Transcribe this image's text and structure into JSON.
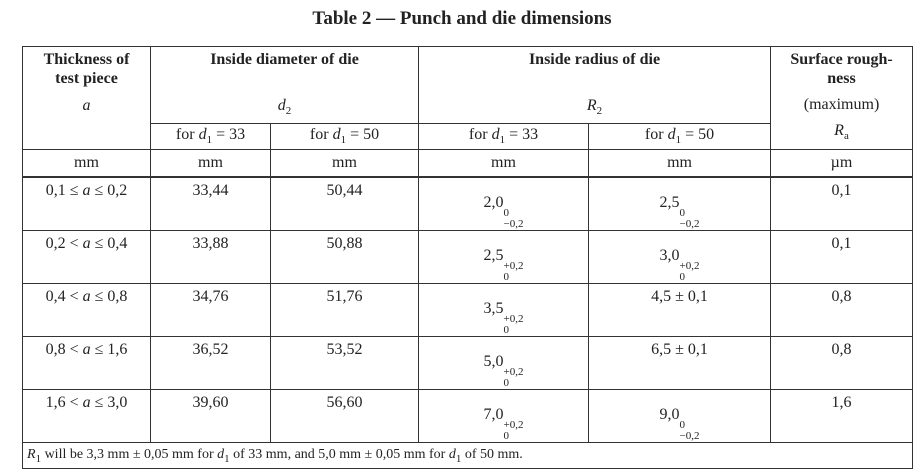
{
  "title": "Table 2 — Punch and die dimensions",
  "header": {
    "thickness": {
      "line1": "Thickness of",
      "line2": "test piece",
      "symbol": "a"
    },
    "diameter": {
      "title": "Inside diameter of die",
      "symbol": "d",
      "symbol_sub": "2"
    },
    "radius": {
      "title": "Inside radius of die",
      "symbol": "R",
      "symbol_sub": "2"
    },
    "roughness": {
      "line1": "Surface rough-",
      "line2": "ness",
      "note": "(maximum)",
      "symbol": "R",
      "symbol_sub": "a"
    },
    "subheads": [
      {
        "pre": "for ",
        "var": "d",
        "sub": "1",
        "post": " = 33"
      },
      {
        "pre": "for ",
        "var": "d",
        "sub": "1",
        "post": " = 50"
      },
      {
        "pre": "for ",
        "var": "d",
        "sub": "1",
        "post": " = 33"
      },
      {
        "pre": "for ",
        "var": "d",
        "sub": "1",
        "post": " = 50"
      }
    ],
    "units": [
      "mm",
      "mm",
      "mm",
      "mm",
      "mm",
      "µm"
    ]
  },
  "rows": [
    {
      "range": {
        "low": "0,1 ≤ ",
        "var": "a",
        "high": " ≤ 0,2"
      },
      "d33": "33,44",
      "d50": "50,44",
      "r33": {
        "base": "2,0",
        "sup": "0",
        "sub": "−0,2"
      },
      "r50": {
        "base": "2,5",
        "sup": "0",
        "sub": "−0,2"
      },
      "ra": "0,1"
    },
    {
      "range": {
        "low": "0,2 < ",
        "var": "a",
        "high": " ≤ 0,4"
      },
      "d33": "33,88",
      "d50": "50,88",
      "r33": {
        "base": "2,5",
        "sup": "+0,2",
        "sub": "0"
      },
      "r50": {
        "base": "3,0",
        "sup": "+0,2",
        "sub": "0"
      },
      "ra": "0,1"
    },
    {
      "range": {
        "low": "0,4 < ",
        "var": "a",
        "high": " ≤ 0,8"
      },
      "d33": "34,76",
      "d50": "51,76",
      "r33": {
        "base": "3,5",
        "sup": "+0,2",
        "sub": "0"
      },
      "r50": "4,5 ± 0,1",
      "ra": "0,8"
    },
    {
      "range": {
        "low": "0,8 < ",
        "var": "a",
        "high": " ≤ 1,6"
      },
      "d33": "36,52",
      "d50": "53,52",
      "r33": {
        "base": "5,0",
        "sup": "+0,2",
        "sub": "0"
      },
      "r50": "6,5 ± 0,1",
      "ra": "0,8"
    },
    {
      "range": {
        "low": "1,6 < ",
        "var": "a",
        "high": " ≤ 3,0"
      },
      "d33": "39,60",
      "d50": "56,60",
      "r33": {
        "base": "7,0",
        "sup": "+0,2",
        "sub": "0"
      },
      "r50": {
        "base": "9,0",
        "sup": "0",
        "sub": "−0,2"
      },
      "ra": "1,6"
    }
  ],
  "footnote": [
    "R",
    "1",
    " will be 3,3 mm ± 0,05 mm for ",
    "d",
    "1",
    " of 33 mm, and 5,0 mm ± 0,05 mm for ",
    "d",
    "1",
    " of 50 mm."
  ]
}
